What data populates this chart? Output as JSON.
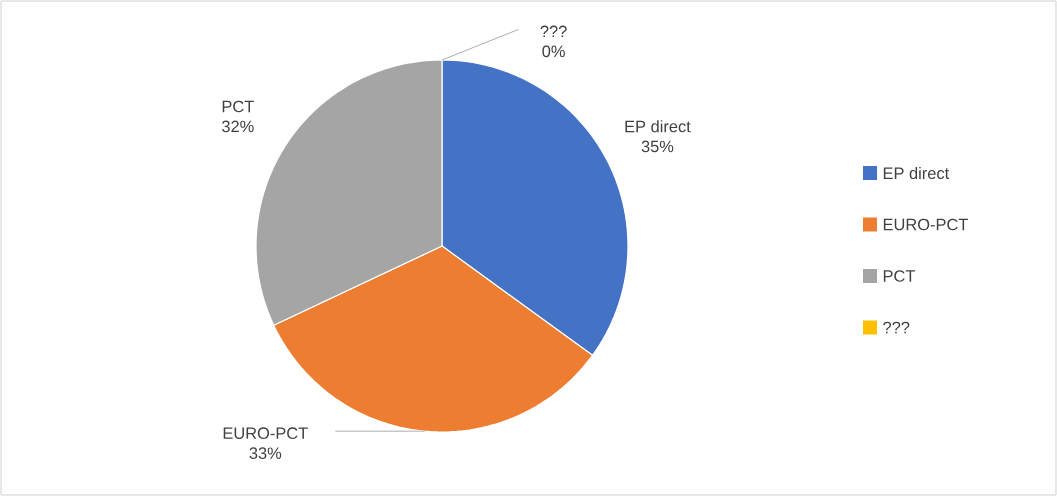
{
  "chart_data": {
    "type": "pie",
    "categories": [
      "EP direct",
      "EURO-PCT",
      "PCT",
      "???"
    ],
    "values": [
      35,
      33,
      32,
      0
    ],
    "value_labels": [
      "35%",
      "33%",
      "32%",
      "0%"
    ],
    "colors": [
      "#4472c4",
      "#ed7d31",
      "#a5a5a5",
      "#ffc000"
    ],
    "legend": "right"
  }
}
